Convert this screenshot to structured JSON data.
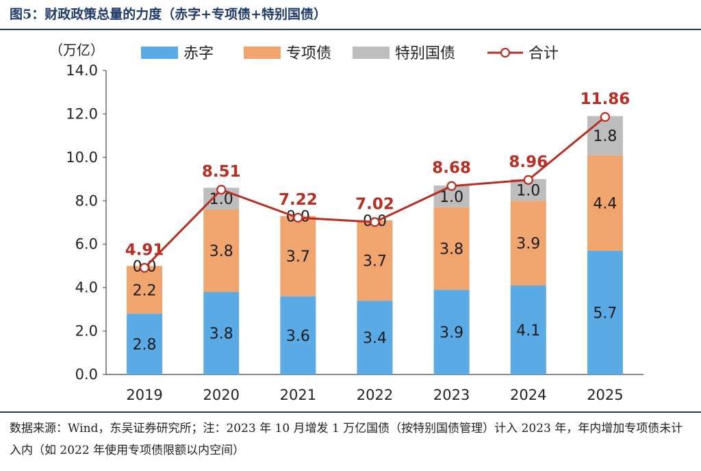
{
  "figure_title": "图5：财政政策总量的力度（赤字+专项债+特别国债）",
  "source_note": "数据来源：Wind，东吴证券研究所；注：2023 年 10 月增发 1 万亿国债（按特别国债管理）计入 2023 年，年内增加专项债未计入内（如 2022 年使用专项债限额以内空间）",
  "colors": {
    "deficit": "#5aaae6",
    "special_bond": "#f0a46e",
    "special_treasury": "#bdbdbd",
    "total": "#b82e23",
    "title": "#1f3a68"
  },
  "chart_data": {
    "type": "bar",
    "stacked": true,
    "categories": [
      "2019",
      "2020",
      "2021",
      "2022",
      "2023",
      "2024",
      "2025"
    ],
    "series": [
      {
        "name": "赤字",
        "values": [
          2.8,
          3.8,
          3.6,
          3.4,
          3.9,
          4.1,
          5.7
        ]
      },
      {
        "name": "专项债",
        "values": [
          2.2,
          3.8,
          3.7,
          3.7,
          3.8,
          3.9,
          4.4
        ]
      },
      {
        "name": "特别国债",
        "values": [
          0.0,
          1.0,
          0.0,
          0.0,
          1.0,
          1.0,
          1.8
        ]
      }
    ],
    "line": {
      "name": "合计",
      "values": [
        4.91,
        8.51,
        7.22,
        7.02,
        8.68,
        8.96,
        11.86
      ]
    },
    "value_labels": {
      "赤字": [
        "2.8",
        "3.8",
        "3.6",
        "3.4",
        "3.9",
        "4.1",
        "5.7"
      ],
      "专项债": [
        "2.2",
        "3.8",
        "3.7",
        "3.7",
        "3.8",
        "3.9",
        "4.4"
      ],
      "特别国债": [
        "0.0",
        "1.0",
        "0.0",
        "0.0",
        "1.0",
        "1.0",
        "1.8"
      ],
      "合计": [
        "4.91",
        "8.51",
        "7.22",
        "7.02",
        "8.68",
        "8.96",
        "11.86"
      ]
    },
    "y_unit": "（万亿）",
    "ylim": [
      0,
      14
    ],
    "y_ticks": [
      "0.0",
      "2.0",
      "4.0",
      "6.0",
      "8.0",
      "10.0",
      "12.0",
      "14.0"
    ],
    "legend_position": "top",
    "grid": false
  }
}
